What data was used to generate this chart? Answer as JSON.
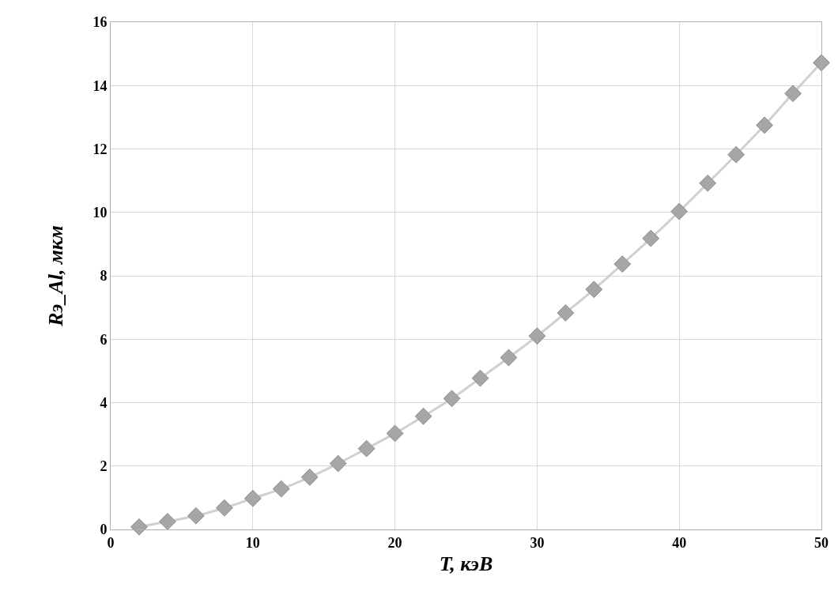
{
  "chart_data": {
    "type": "line",
    "xlabel": "T, кэВ",
    "ylabel": "Rэ_Al, мкм",
    "x": [
      2,
      4,
      6,
      8,
      10,
      12,
      14,
      16,
      18,
      20,
      22,
      24,
      26,
      28,
      30,
      32,
      34,
      36,
      38,
      40,
      42,
      44,
      46,
      48,
      50
    ],
    "series": [
      {
        "color": "#a6a6a6",
        "values": [
          0.08,
          0.25,
          0.43,
          0.68,
          0.98,
          1.28,
          1.65,
          2.08,
          2.55,
          3.03,
          3.57,
          4.13,
          4.77,
          5.42,
          6.1,
          6.83,
          7.57,
          8.37,
          9.18,
          10.03,
          10.92,
          11.82,
          12.75,
          13.75,
          14.72
        ]
      }
    ],
    "xlim": [
      0,
      50
    ],
    "xticks": [
      0,
      10,
      20,
      30,
      40,
      50
    ],
    "ylim": [
      0,
      16
    ],
    "yticks": [
      0,
      2,
      4,
      6,
      8,
      10,
      12,
      14,
      16
    ],
    "grid": true,
    "marker": "diamond",
    "line_style": "solid",
    "legend": false
  }
}
